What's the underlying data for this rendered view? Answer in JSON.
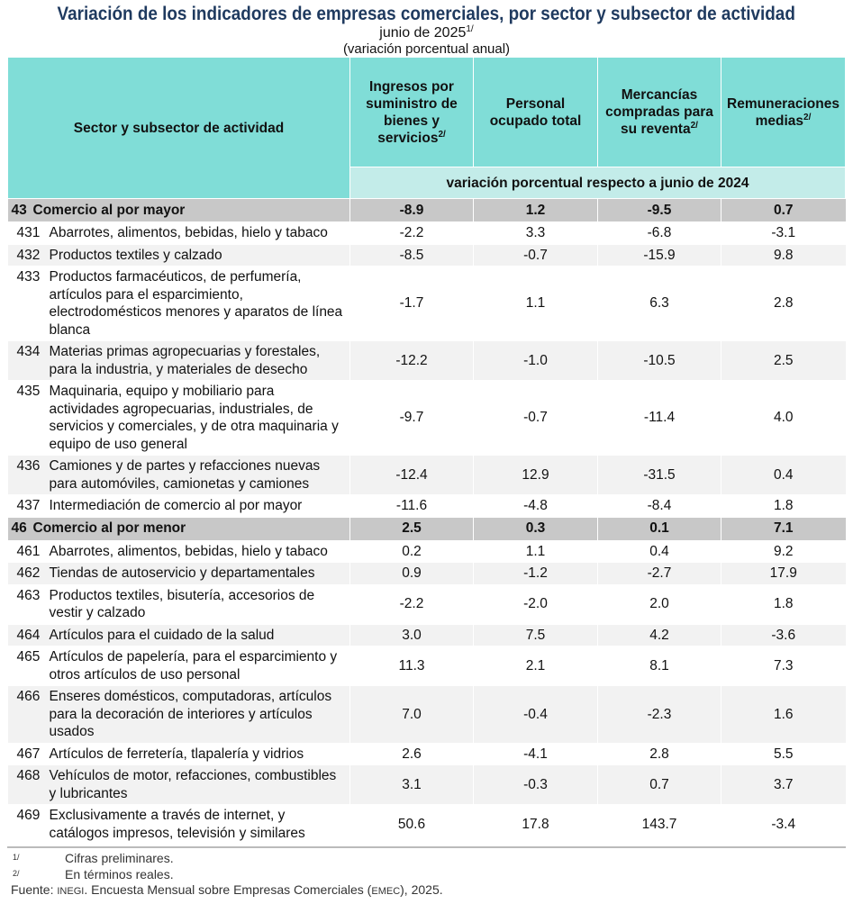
{
  "title": "Variación de los indicadores de empresas comerciales, por sector y subsector de actividad",
  "period": "junio de 2025",
  "period_note": "1/",
  "units": "(variación porcentual anual)",
  "headers": {
    "sector": "Sector y subsector de actividad",
    "cols": [
      {
        "label": "Ingresos por suministro de bienes y servicios",
        "note": "2/"
      },
      {
        "label": "Personal ocupado total",
        "note": ""
      },
      {
        "label": "Mercancías compradas para su reventa",
        "note": "2/"
      },
      {
        "label": "Remuneraciones medias",
        "note": "2/"
      }
    ],
    "subheader": "variación porcentual respecto a junio de 2024"
  },
  "rows": [
    {
      "code": "43",
      "label": "Comercio al por mayor",
      "sector": true,
      "values": [
        "-8.9",
        "1.2",
        "-9.5",
        "0.7"
      ]
    },
    {
      "code": "431",
      "label": "Abarrotes, alimentos, bebidas, hielo y tabaco",
      "values": [
        "-2.2",
        "3.3",
        "-6.8",
        "-3.1"
      ]
    },
    {
      "code": "432",
      "label": "Productos textiles y calzado",
      "values": [
        "-8.5",
        "-0.7",
        "-15.9",
        "9.8"
      ]
    },
    {
      "code": "433",
      "label": "Productos farmacéuticos, de perfumería, artículos para el esparcimiento, electrodomésticos menores y aparatos de línea blanca",
      "values": [
        "-1.7",
        "1.1",
        "6.3",
        "2.8"
      ]
    },
    {
      "code": "434",
      "label": "Materias primas agropecuarias y forestales, para la industria, y materiales de desecho",
      "values": [
        "-12.2",
        "-1.0",
        "-10.5",
        "2.5"
      ]
    },
    {
      "code": "435",
      "label": "Maquinaria, equipo y mobiliario para actividades agropecuarias, industriales, de servicios y comerciales, y de otra maquinaria y equipo de uso general",
      "values": [
        "-9.7",
        "-0.7",
        "-11.4",
        "4.0"
      ]
    },
    {
      "code": "436",
      "label": "Camiones y de partes y refacciones nuevas para automóviles, camionetas y camiones",
      "values": [
        "-12.4",
        "12.9",
        "-31.5",
        "0.4"
      ]
    },
    {
      "code": "437",
      "label": "Intermediación de comercio al por mayor",
      "values": [
        "-11.6",
        "-4.8",
        "-8.4",
        "1.8"
      ]
    },
    {
      "code": "46",
      "label": "Comercio al por menor",
      "sector": true,
      "values": [
        "2.5",
        "0.3",
        "0.1",
        "7.1"
      ]
    },
    {
      "code": "461",
      "label": "Abarrotes, alimentos, bebidas, hielo y tabaco",
      "values": [
        "0.2",
        "1.1",
        "0.4",
        "9.2"
      ]
    },
    {
      "code": "462",
      "label": "Tiendas de autoservicio y departamentales",
      "values": [
        "0.9",
        "-1.2",
        "-2.7",
        "17.9"
      ]
    },
    {
      "code": "463",
      "label": "Productos textiles, bisutería, accesorios de vestir y calzado",
      "values": [
        "-2.2",
        "-2.0",
        "2.0",
        "1.8"
      ]
    },
    {
      "code": "464",
      "label": "Artículos para el cuidado de la salud",
      "values": [
        "3.0",
        "7.5",
        "4.2",
        "-3.6"
      ]
    },
    {
      "code": "465",
      "label": "Artículos de papelería, para el esparcimiento y otros artículos de uso personal",
      "values": [
        "11.3",
        "2.1",
        "8.1",
        "7.3"
      ]
    },
    {
      "code": "466",
      "label": "Enseres domésticos, computadoras, artículos para la decoración de interiores y artículos usados",
      "values": [
        "7.0",
        "-0.4",
        "-2.3",
        "1.6"
      ]
    },
    {
      "code": "467",
      "label": "Artículos de ferretería, tlapalería y vidrios",
      "values": [
        "2.6",
        "-4.1",
        "2.8",
        "5.5"
      ]
    },
    {
      "code": "468",
      "label": "Vehículos de motor, refacciones, combustibles y lubricantes",
      "values": [
        "3.1",
        "-0.3",
        "0.7",
        "3.7"
      ]
    },
    {
      "code": "469",
      "label": "Exclusivamente a través de internet, y catálogos impresos, televisión y similares",
      "values": [
        "50.6",
        "17.8",
        "143.7",
        "-3.4"
      ]
    }
  ],
  "footnotes": [
    {
      "mark": "1/",
      "text": "Cifras preliminares."
    },
    {
      "mark": "2/",
      "text": "En términos reales."
    }
  ],
  "source": {
    "label": "Fuente:",
    "org": "INEGI",
    "text": ". Encuesta Mensual sobre Empresas Comerciales (",
    "abbr": "EMEC",
    "end": "), 2025."
  },
  "colors": {
    "header": "#80ddd7",
    "subheader": "#c3ece9",
    "sector_row": "#c8c8c8",
    "alt_row": "#f2f2f2",
    "title": "#1f3a5f"
  }
}
